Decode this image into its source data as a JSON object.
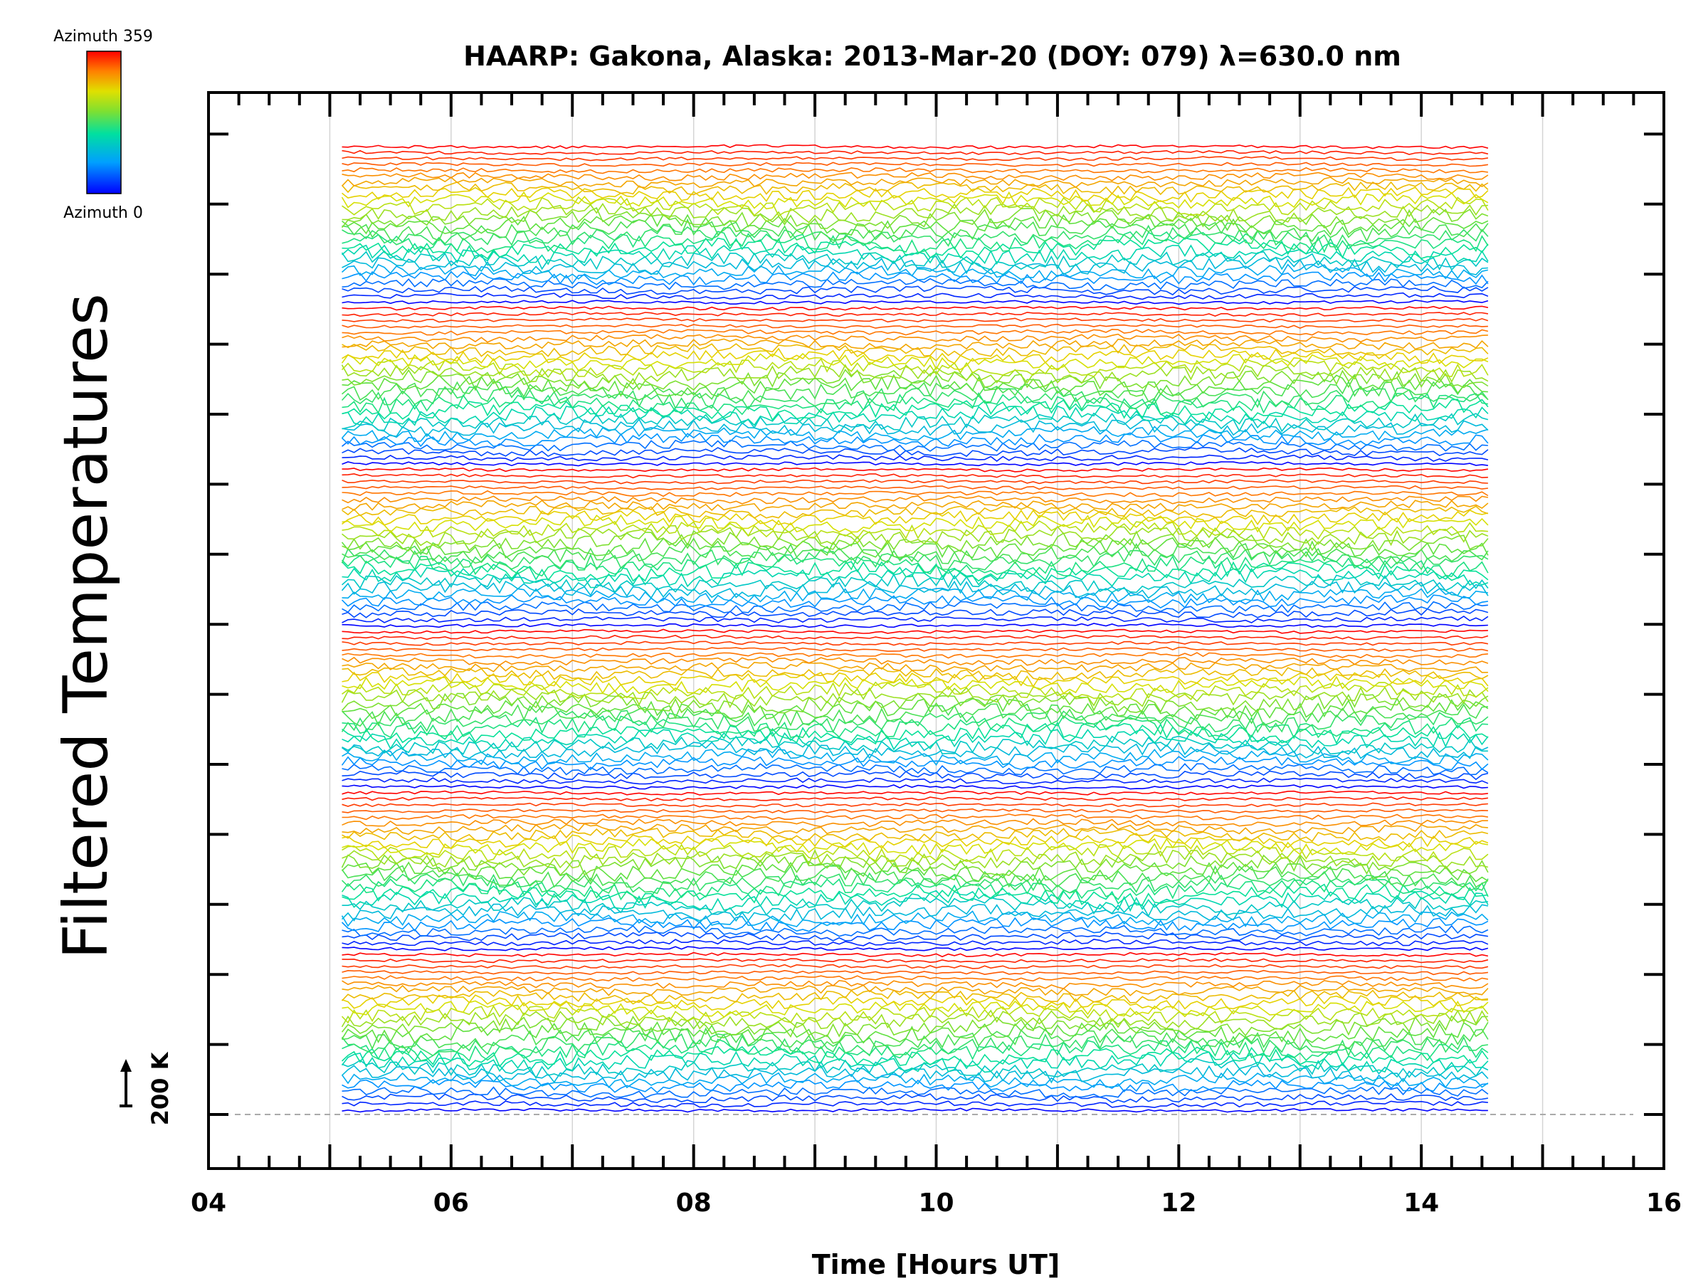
{
  "chart_data": {
    "type": "line",
    "title": "HAARP: Gakona,  Alaska: 2013-Mar-20 (DOY: 079) λ=630.0 nm",
    "xlabel": "Time [Hours UT]",
    "ylabel": "Filtered Temperatures",
    "xlim": [
      4,
      16
    ],
    "x_ticks": [
      "04",
      "06",
      "08",
      "10",
      "12",
      "14",
      "16"
    ],
    "grid": true,
    "data_time_range": [
      5.1,
      14.55
    ],
    "series_count": 162,
    "stack_period": 27,
    "colorbar": {
      "top_label": "Azimuth 359",
      "bottom_label": "Azimuth 0",
      "colors": [
        "#0000ff",
        "#00a0ff",
        "#00e0a0",
        "#60e040",
        "#e0e000",
        "#ff8000",
        "#ff0000"
      ]
    },
    "scale_bar_label": "200 K"
  }
}
